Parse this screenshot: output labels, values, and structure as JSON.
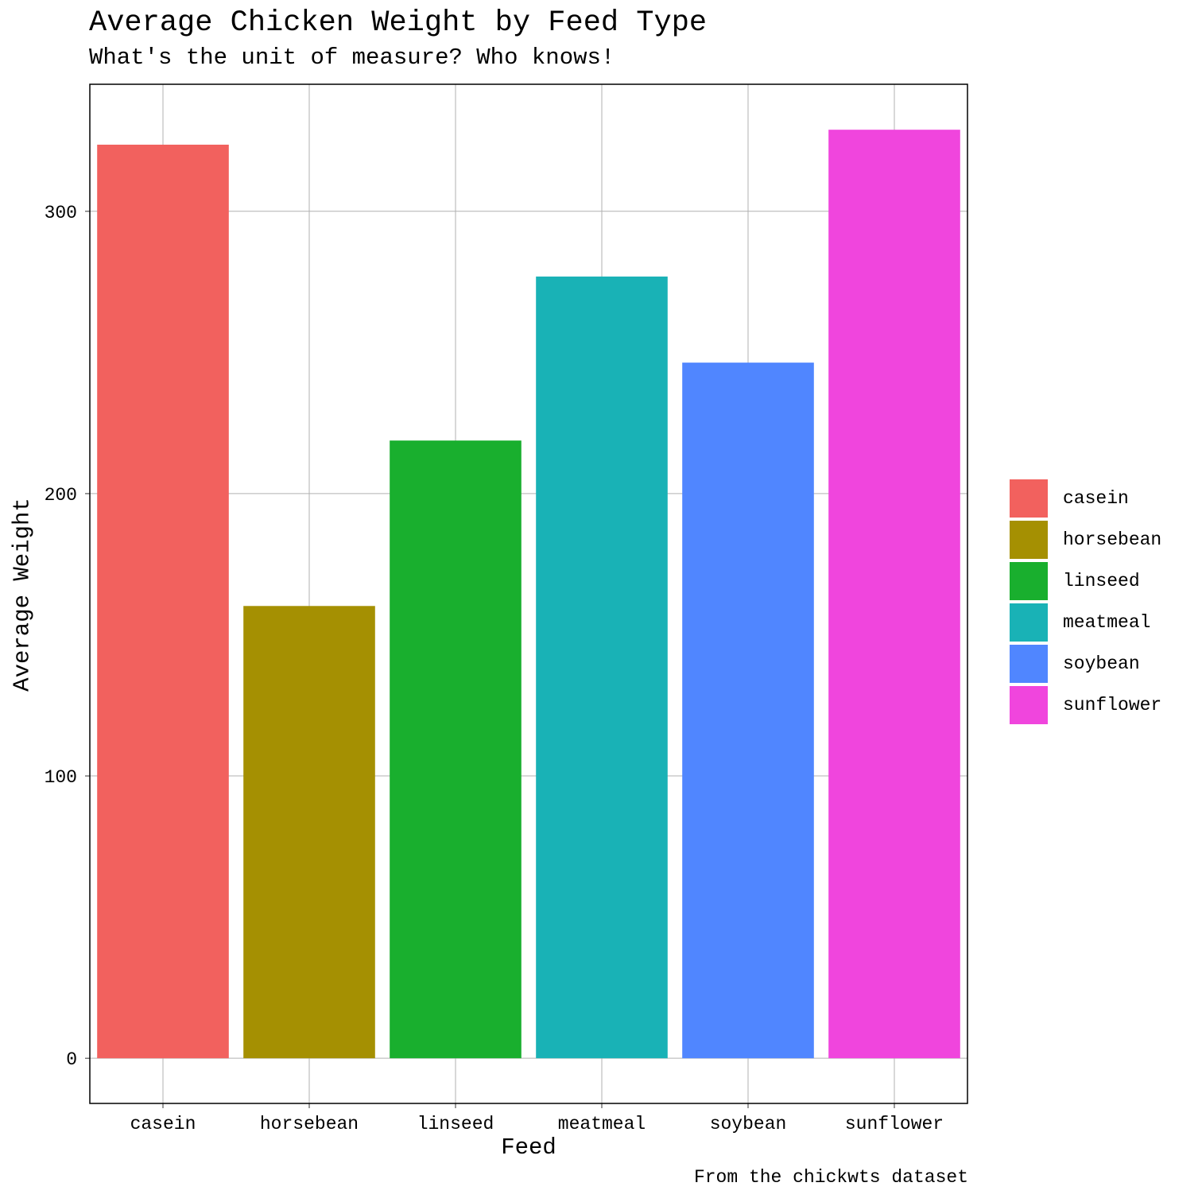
{
  "chart_data": {
    "type": "bar",
    "title": "Average Chicken Weight by Feed Type",
    "subtitle": "What's the unit of measure? Who knows!",
    "caption": "From the chickwts dataset",
    "xlabel": "Feed",
    "ylabel": "Average Weight",
    "categories": [
      "casein",
      "horsebean",
      "linseed",
      "meatmeal",
      "soybean",
      "sunflower"
    ],
    "values": [
      323.6,
      160.2,
      218.8,
      276.9,
      246.4,
      328.9
    ],
    "colors": [
      "#F2615E",
      "#A59002",
      "#19AF2E",
      "#19B2B6",
      "#5086FF",
      "#F045DD"
    ],
    "ylim": [
      -16,
      345
    ],
    "yticks": [
      0,
      100,
      200,
      300
    ],
    "grid": true,
    "legend_position": "right",
    "legend_entries": [
      "casein",
      "horsebean",
      "linseed",
      "meatmeal",
      "soybean",
      "sunflower"
    ]
  }
}
